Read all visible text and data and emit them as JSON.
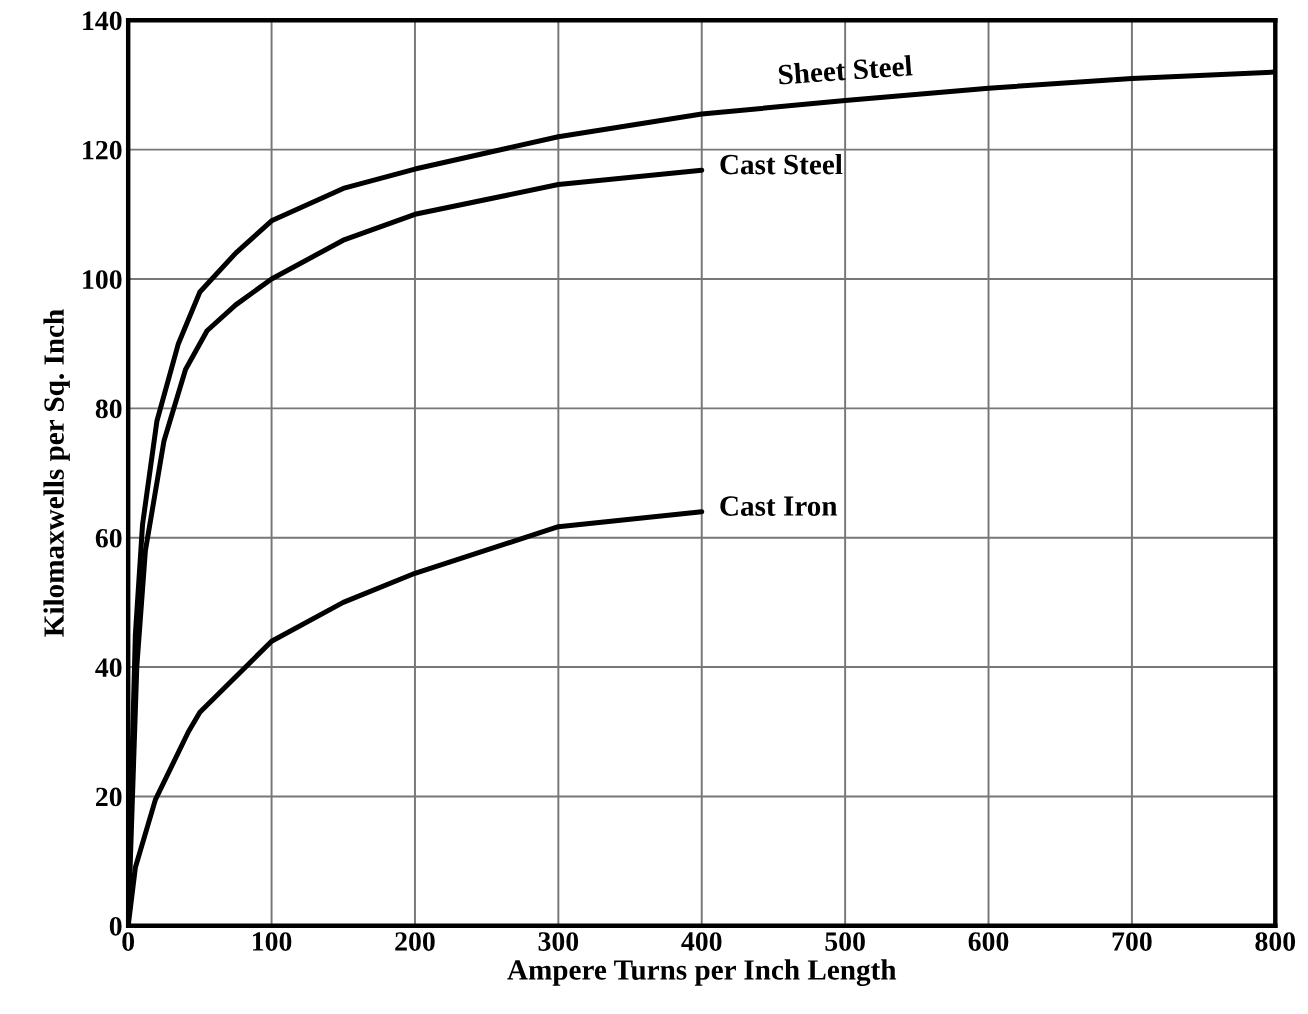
{
  "chart_data": {
    "type": "line",
    "xlabel": "Ampere Turns per Inch Length",
    "ylabel": "Kilomaxwells per Sq. Inch",
    "xlim": [
      0,
      800
    ],
    "ylim": [
      0,
      140
    ],
    "xticks": [
      0,
      100,
      200,
      300,
      400,
      500,
      600,
      700,
      800
    ],
    "yticks": [
      0,
      20,
      40,
      60,
      80,
      100,
      120,
      140
    ],
    "grid": true,
    "legend": false,
    "marker": "none",
    "line_style": "solid",
    "series": [
      {
        "name": "Sheet Steel",
        "color": "#000000",
        "x": [
          0,
          2,
          5,
          10,
          20,
          35,
          50,
          75,
          100,
          150,
          200,
          300,
          400,
          500,
          600,
          700,
          800
        ],
        "values": [
          0,
          20,
          45,
          62,
          78,
          90,
          98,
          104,
          109,
          114,
          117,
          122,
          125.5,
          127.6,
          129.5,
          131,
          132
        ]
      },
      {
        "name": "Cast Steel",
        "color": "#000000",
        "x": [
          0,
          3,
          6,
          12,
          25,
          40,
          55,
          75,
          100,
          150,
          200,
          300,
          400
        ],
        "values": [
          0,
          20,
          40,
          58,
          75,
          86,
          92,
          96,
          100,
          106,
          110,
          114.6,
          116.8
        ]
      },
      {
        "name": "Cast Iron",
        "color": "#000000",
        "x": [
          0,
          5,
          19,
          42,
          50,
          100,
          150,
          200,
          300,
          400
        ],
        "values": [
          0,
          9,
          19.5,
          30,
          33,
          44,
          50,
          54.5,
          61.7,
          64
        ]
      }
    ]
  }
}
